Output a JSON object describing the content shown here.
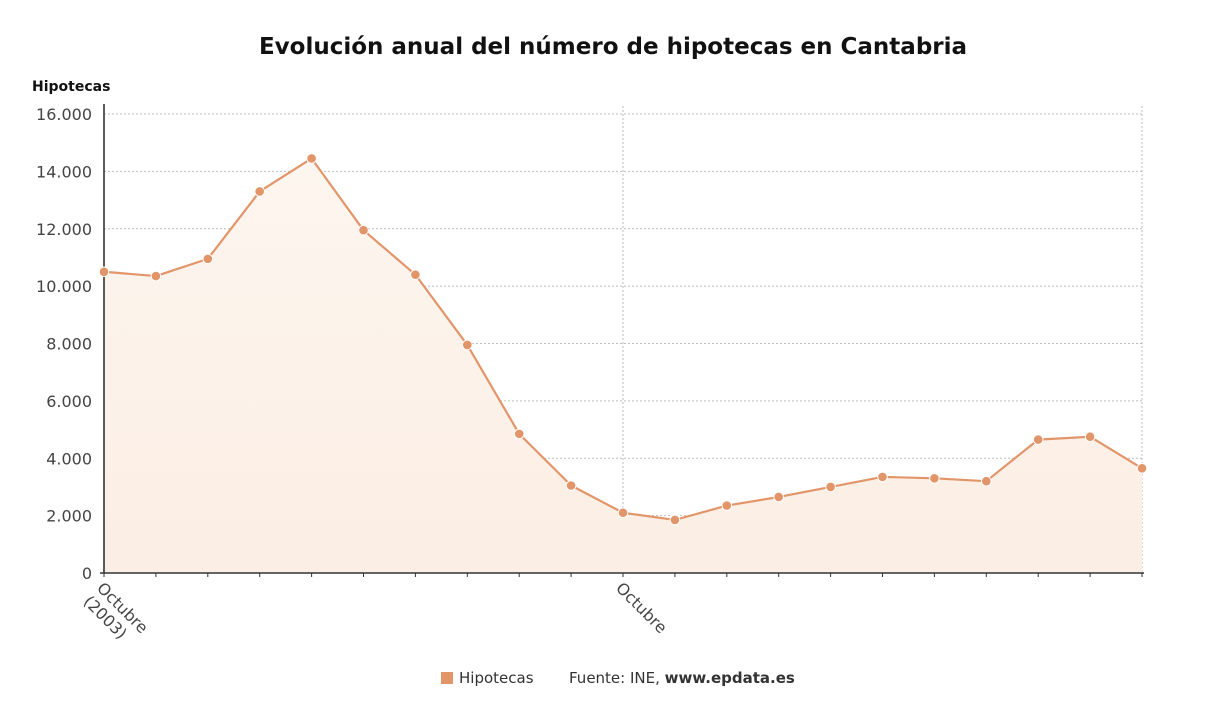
{
  "chart_data": {
    "type": "area",
    "title": "Evolución anual del número de hipotecas en Cantabria",
    "ylabel": "Hipotecas",
    "xlabel": "",
    "ylim": [
      0,
      16000
    ],
    "y_ticks": [
      "0",
      "2.000",
      "4.000",
      "6.000",
      "8.000",
      "10.000",
      "12.000",
      "14.000",
      "16.000"
    ],
    "x_tick_labels": [
      {
        "index": 0,
        "lines": [
          "Octubre",
          "(2003)"
        ]
      },
      {
        "index": 10,
        "lines": [
          "Octubre"
        ]
      }
    ],
    "series": [
      {
        "name": "Hipotecas",
        "values": [
          10500,
          10350,
          10950,
          13300,
          14450,
          11950,
          10400,
          7950,
          4850,
          3050,
          2100,
          1850,
          2350,
          2650,
          3000,
          3350,
          3300,
          3200,
          4650,
          4750,
          3650
        ]
      }
    ],
    "grid": true,
    "legend_position": "bottom",
    "colors": {
      "line": "#e3956a",
      "marker": "#e3956a",
      "area_top": "#fdf6ef",
      "area_bottom": "#fbeee4",
      "grid": "#bcbcbc",
      "axis": "#333333"
    }
  },
  "legend": {
    "label": "Hipotecas"
  },
  "source": {
    "prefix": "Fuente: INE, ",
    "site": "www.epdata.es"
  }
}
